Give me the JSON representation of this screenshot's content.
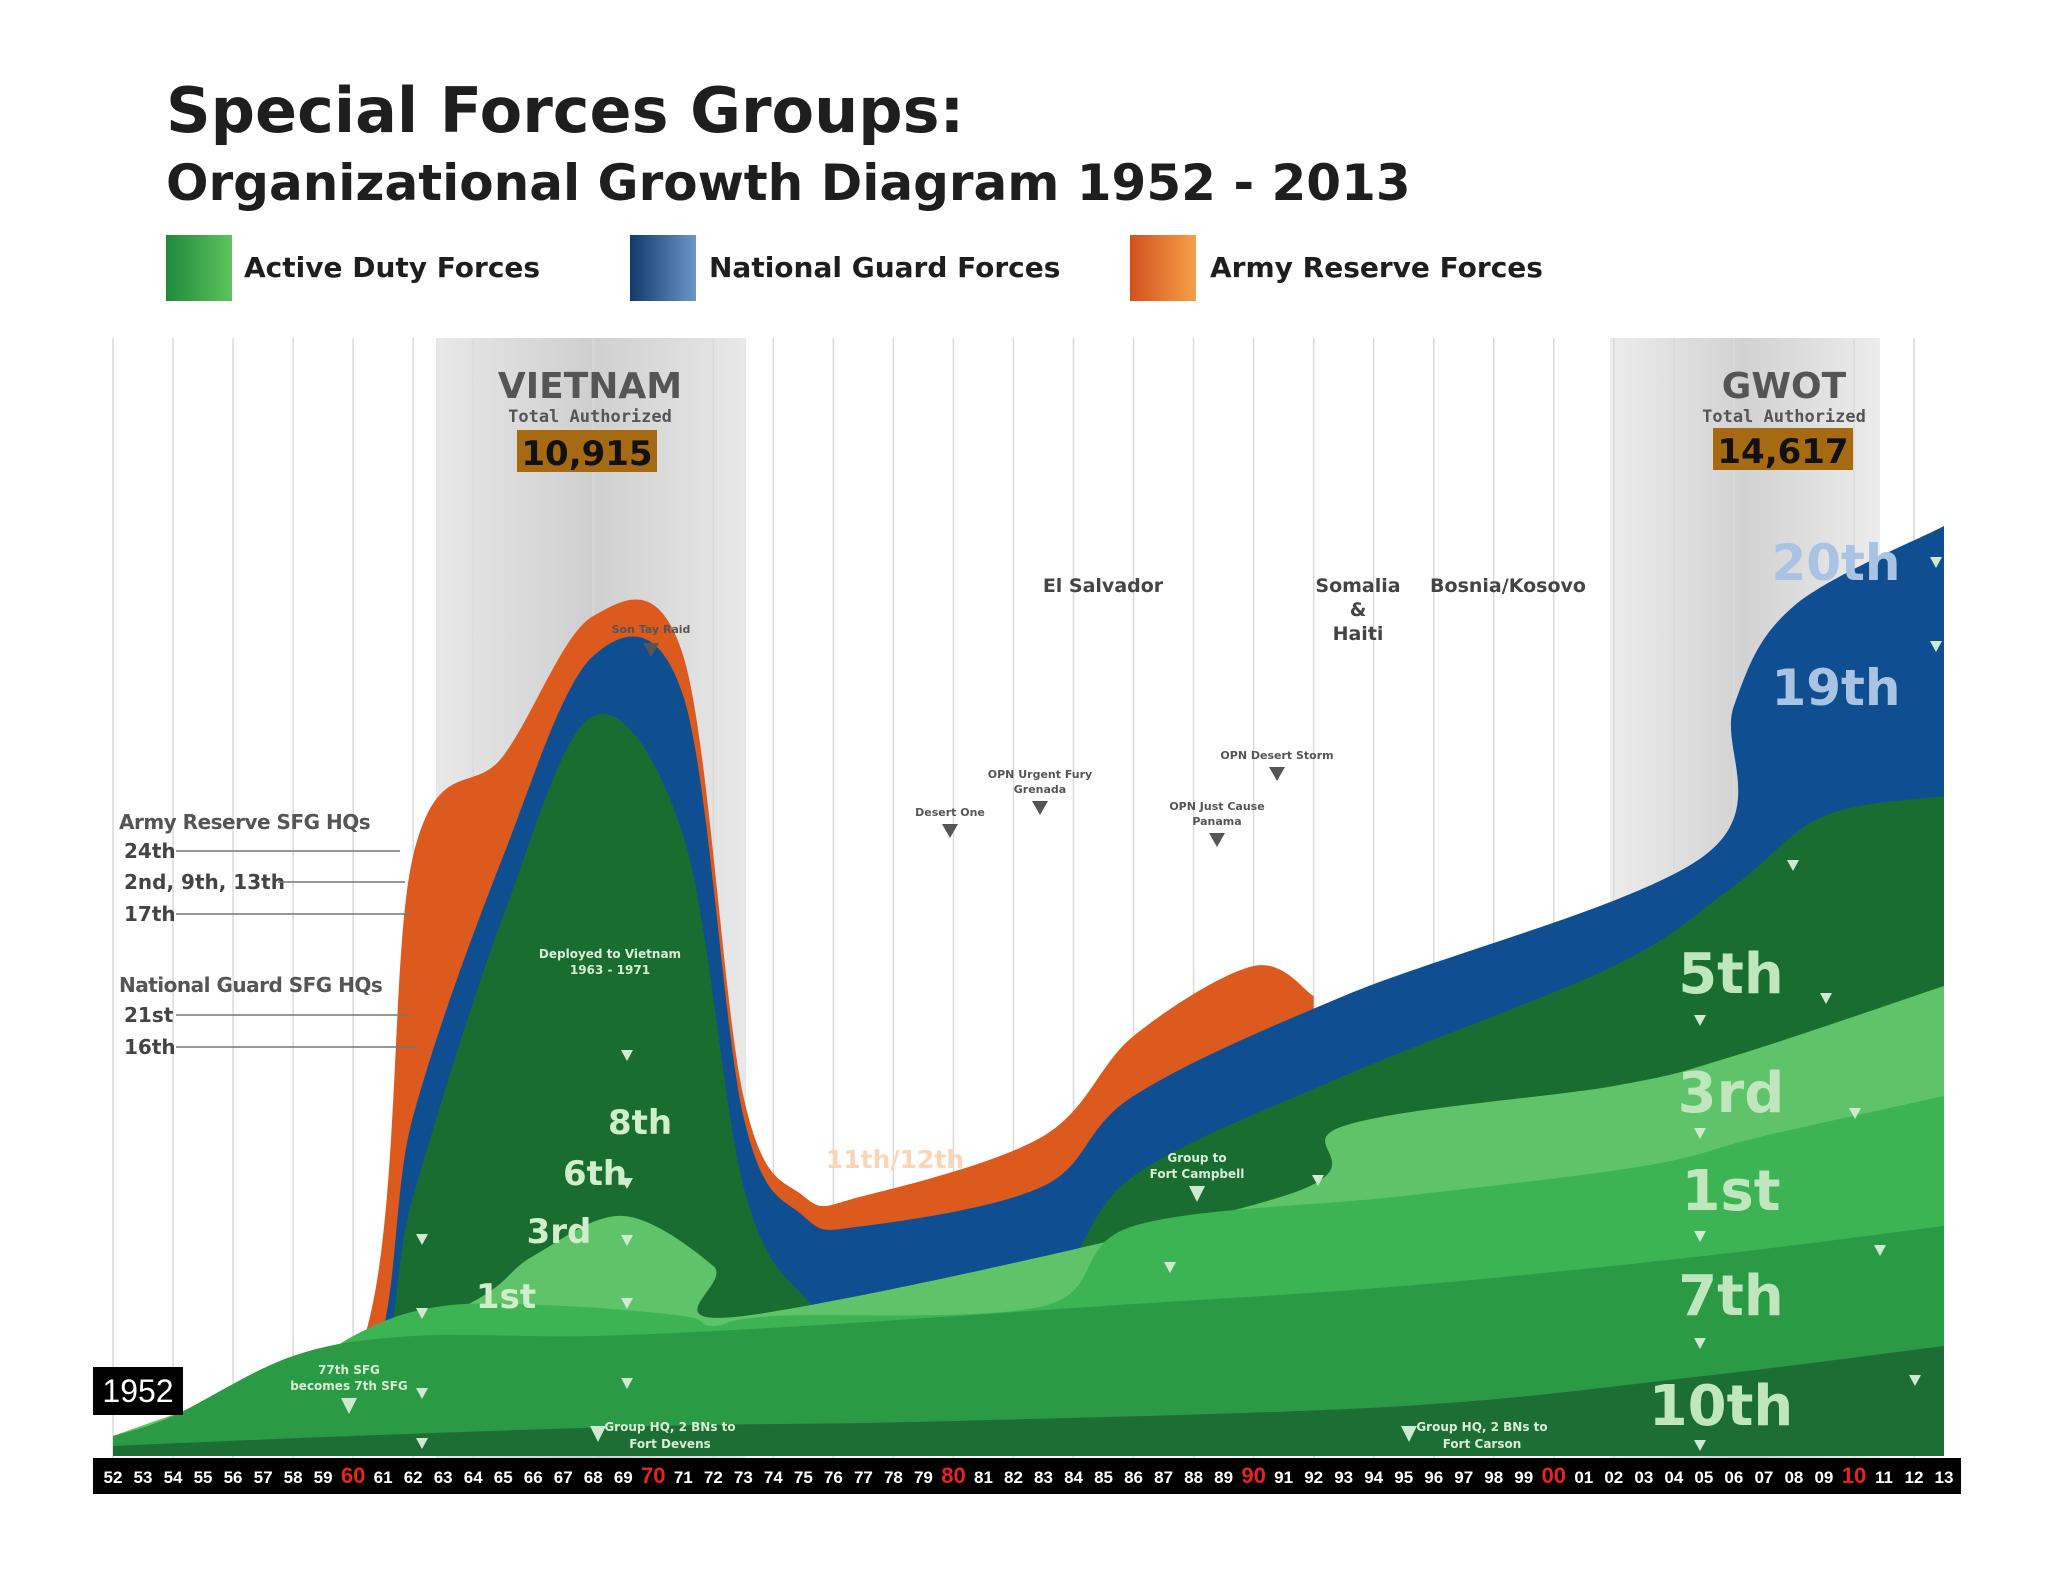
{
  "header": {
    "title": "Special Forces Groups:",
    "subtitle": "Organizational Growth Diagram 1952 - 2013"
  },
  "legend": [
    {
      "label": "Active Duty Forces",
      "color_start": "#1e8a3c",
      "color_end": "#5cc45a"
    },
    {
      "label": "National Guard Forces",
      "color_start": "#123a6b",
      "color_end": "#6b96c8"
    },
    {
      "label": "Army Reserve Forces",
      "color_start": "#d4501e",
      "color_end": "#f5a048"
    }
  ],
  "eras": [
    {
      "name": "VIETNAM",
      "sub": "Total Authorized",
      "total": "10,915",
      "start": 1962,
      "end": 1972
    },
    {
      "name": "GWOT",
      "sub": "Total Authorized",
      "total": "14,617",
      "start": 2001,
      "end": 2010
    }
  ],
  "events": {
    "el_salvador": "El Salvador",
    "somalia": "Somalia",
    "amp": "&",
    "haiti": "Haiti",
    "bosnia": "Bosnia/Kosovo",
    "son_tay": "Son Tay Raid",
    "desert_one": "Desert One",
    "urgent_fury_1": "OPN Urgent Fury",
    "urgent_fury_2": "Grenada",
    "just_cause_1": "OPN Just Cause",
    "just_cause_2": "Panama",
    "desert_storm": "OPN Desert Storm"
  },
  "side_labels": {
    "reserve_head": "Army Reserve SFG HQs",
    "reserve_items": [
      "24th",
      "2nd, 9th, 13th",
      "17th"
    ],
    "guard_head": "National Guard SFG HQs",
    "guard_items": [
      "21st",
      "16th"
    ]
  },
  "annotations": {
    "deployed_1": "Deployed to Vietnam",
    "deployed_2": "1963 - 1971",
    "campbell_1": "Group to",
    "campbell_2": "Fort Campbell",
    "devens_1": "Group HQ, 2 BNs to",
    "devens_2": "Fort Devens",
    "carson_1": "Group HQ, 2 BNs to",
    "carson_2": "Fort Carson",
    "seventy_seven_1": "77th SFG",
    "seventy_seven_2": "becomes 7th SFG"
  },
  "group_labels": {
    "g20": "20th",
    "g19": "19th",
    "g5": "5th",
    "g3_late": "3rd",
    "g1_late": "1st",
    "g7": "7th",
    "g10": "10th",
    "g8": "8th",
    "g6": "6th",
    "g3_early": "3rd",
    "g1_early": "1st",
    "g11_12": "11th/12th"
  },
  "start_label": "1952",
  "year_ticks": [
    "52",
    "53",
    "54",
    "55",
    "56",
    "57",
    "58",
    "59",
    "60",
    "61",
    "62",
    "63",
    "64",
    "65",
    "66",
    "67",
    "68",
    "69",
    "70",
    "71",
    "72",
    "73",
    "74",
    "75",
    "76",
    "77",
    "78",
    "79",
    "80",
    "81",
    "82",
    "83",
    "84",
    "85",
    "86",
    "87",
    "88",
    "89",
    "90",
    "91",
    "92",
    "93",
    "94",
    "95",
    "96",
    "97",
    "98",
    "99",
    "00",
    "01",
    "02",
    "03",
    "04",
    "05",
    "06",
    "07",
    "08",
    "09",
    "10",
    "11",
    "12",
    "13"
  ],
  "decade_ticks": [
    "60",
    "70",
    "80",
    "90",
    "00",
    "10"
  ],
  "colors": {
    "decade_tick": "#e8241c",
    "axis_bar": "#000000",
    "era_shade": "#d6d6d6",
    "total_box": "#a56a12"
  },
  "chart_data": {
    "type": "area",
    "title": "Special Forces Groups: Organizational Growth Diagram 1952 - 2013",
    "xlabel": "",
    "ylabel": "",
    "xlim": [
      1952,
      2013
    ],
    "layers_bottom_to_top": [
      {
        "name": "10th",
        "component": "Active Duty",
        "fill": "#1c6e34",
        "points": [
          [
            1952,
            0.1
          ],
          [
            1960,
            0.2
          ],
          [
            1970,
            0.3
          ],
          [
            1980,
            0.35
          ],
          [
            1995,
            0.5
          ],
          [
            2005,
            0.8
          ],
          [
            2013,
            1.1
          ]
        ]
      },
      {
        "name": "7th",
        "component": "Active Duty",
        "fill": "#2a9a44",
        "points": [
          [
            1952,
            0.2
          ],
          [
            1954,
            0.4
          ],
          [
            1958,
            1.0
          ],
          [
            1962,
            1.2
          ],
          [
            1968,
            1.2
          ],
          [
            1975,
            1.3
          ],
          [
            1985,
            1.5
          ],
          [
            1995,
            1.7
          ],
          [
            2005,
            2.0
          ],
          [
            2013,
            2.3
          ]
        ]
      },
      {
        "name": "1st",
        "component": "Active Duty",
        "fill": "#3db453",
        "points": [
          [
            1952,
            0.2
          ],
          [
            1956,
            0.4
          ],
          [
            1960,
            1.2
          ],
          [
            1963,
            1.5
          ],
          [
            1967,
            1.5
          ],
          [
            1971,
            1.4
          ],
          [
            1972,
            1.3
          ],
          [
            1974,
            1.4
          ],
          [
            1983,
            1.5
          ],
          [
            1986,
            2.3
          ],
          [
            1995,
            2.6
          ],
          [
            2003,
            2.9
          ],
          [
            2007,
            3.2
          ],
          [
            2013,
            3.6
          ]
        ]
      },
      {
        "name": "3rd",
        "component": "Active Duty",
        "fill": "#5fc36a",
        "points": [
          [
            1952,
            0.2
          ],
          [
            1963,
            1.4
          ],
          [
            1966,
            2.0
          ],
          [
            1969,
            2.4
          ],
          [
            1972,
            1.9
          ],
          [
            1973,
            1.4
          ],
          [
            1991,
            2.6
          ],
          [
            1993,
            3.3
          ],
          [
            2002,
            3.7
          ],
          [
            2006,
            4.0
          ],
          [
            2013,
            4.7
          ]
        ]
      },
      {
        "name": "5th",
        "component": "Active Duty",
        "fill": "#1a6d31",
        "points": [
          [
            1952,
            0.2
          ],
          [
            1960,
            0.3
          ],
          [
            1962,
            2.6
          ],
          [
            1965,
            5.4
          ],
          [
            1968,
            7.4
          ],
          [
            1971,
            6.2
          ],
          [
            1973,
            2.7
          ],
          [
            1975,
            1.6
          ],
          [
            1977,
            1.4
          ],
          [
            1983,
            1.7
          ],
          [
            1986,
            2.8
          ],
          [
            1993,
            3.8
          ],
          [
            2002,
            4.9
          ],
          [
            2006,
            5.7
          ],
          [
            2009,
            6.4
          ],
          [
            2013,
            6.6
          ]
        ]
      },
      {
        "name": "National Guard",
        "component": "National Guard",
        "fill": "#0f4f91",
        "points": [
          [
            1952,
            0.2
          ],
          [
            1960,
            0.6
          ],
          [
            1962,
            3.4
          ],
          [
            1965,
            6.0
          ],
          [
            1968,
            8.0
          ],
          [
            1971,
            7.6
          ],
          [
            1973,
            3.4
          ],
          [
            1975,
            2.4
          ],
          [
            1977,
            2.3
          ],
          [
            1983,
            2.7
          ],
          [
            1986,
            3.6
          ],
          [
            1993,
            4.6
          ],
          [
            2005,
            6.0
          ],
          [
            2006,
            7.5
          ],
          [
            2008,
            8.5
          ],
          [
            2013,
            9.3
          ]
        ]
      },
      {
        "name": "11th/12th",
        "component": "Army Reserve",
        "fill": "#dc5a1e",
        "points": [
          [
            1952,
            0.2
          ],
          [
            1960,
            0.9
          ],
          [
            1962,
            6.0
          ],
          [
            1965,
            7.0
          ],
          [
            1968,
            8.4
          ],
          [
            1971,
            8.0
          ],
          [
            1973,
            3.6
          ],
          [
            1975,
            2.6
          ],
          [
            1977,
            2.6
          ],
          [
            1983,
            3.2
          ],
          [
            1986,
            4.2
          ],
          [
            1990,
            4.9
          ],
          [
            1992,
            4.6
          ]
        ]
      }
    ]
  }
}
